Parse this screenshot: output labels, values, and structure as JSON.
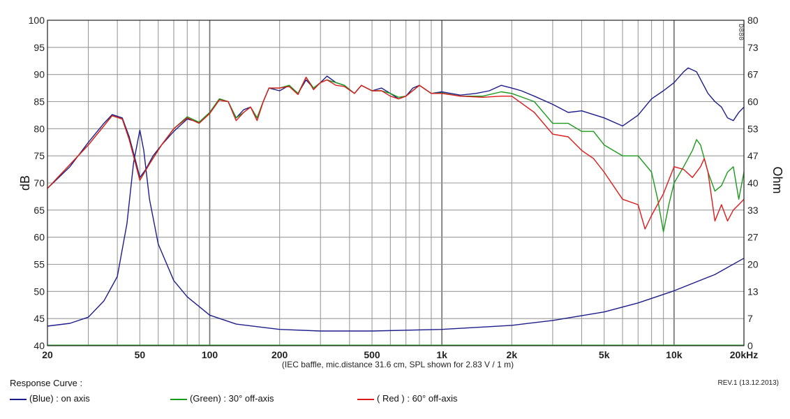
{
  "chart_data": {
    "type": "line",
    "xscale": "log",
    "xlim": [
      20,
      20000
    ],
    "ylim": [
      40,
      100
    ],
    "y2lim": [
      0,
      80
    ],
    "xticks": [
      {
        "v": 20,
        "label": "20"
      },
      {
        "v": 50,
        "label": "50"
      },
      {
        "v": 100,
        "label": "100"
      },
      {
        "v": 200,
        "label": "200"
      },
      {
        "v": 500,
        "label": "500"
      },
      {
        "v": 1000,
        "label": "1k"
      },
      {
        "v": 2000,
        "label": "2k"
      },
      {
        "v": 5000,
        "label": "5k"
      },
      {
        "v": 10000,
        "label": "10k"
      },
      {
        "v": 20000,
        "label": "20kHz"
      }
    ],
    "yticks": [
      "40",
      "45",
      "50",
      "55",
      "60",
      "65",
      "70",
      "75",
      "80",
      "85",
      "90",
      "95",
      "100"
    ],
    "y2ticks": [
      "0",
      "7",
      "13",
      "20",
      "27",
      "33",
      "40",
      "47",
      "53",
      "60",
      "67",
      "73",
      "80"
    ],
    "ylabel": "dB",
    "y2label": "Ohm",
    "note": "(IEC baffle, mic.distance 31.6 cm, SPL shown for 2.83 V / 1 m)",
    "corner_code": "D880",
    "series": [
      {
        "name": "(Blue)  : on axis",
        "color": "#1c1c8c",
        "axis": "left",
        "points": [
          [
            20,
            69
          ],
          [
            25,
            73
          ],
          [
            30,
            77.5
          ],
          [
            35,
            81
          ],
          [
            38,
            82.6
          ],
          [
            42,
            82
          ],
          [
            45,
            78.5
          ],
          [
            48,
            74
          ],
          [
            50,
            71
          ],
          [
            53,
            72.5
          ],
          [
            57,
            75
          ],
          [
            62,
            77
          ],
          [
            70,
            79.5
          ],
          [
            80,
            81.8
          ],
          [
            90,
            81.2
          ],
          [
            100,
            83
          ],
          [
            110,
            85.5
          ],
          [
            120,
            85
          ],
          [
            130,
            82
          ],
          [
            140,
            83.5
          ],
          [
            150,
            84
          ],
          [
            160,
            82
          ],
          [
            170,
            85
          ],
          [
            180,
            87.5
          ],
          [
            200,
            87
          ],
          [
            220,
            88
          ],
          [
            240,
            86.5
          ],
          [
            260,
            89
          ],
          [
            280,
            87.5
          ],
          [
            300,
            88.5
          ],
          [
            320,
            89.7
          ],
          [
            350,
            88.5
          ],
          [
            380,
            88
          ],
          [
            420,
            86.5
          ],
          [
            450,
            88
          ],
          [
            500,
            87
          ],
          [
            550,
            87.5
          ],
          [
            600,
            86.5
          ],
          [
            650,
            85.5
          ],
          [
            700,
            86
          ],
          [
            750,
            87.5
          ],
          [
            800,
            88
          ],
          [
            900,
            86.5
          ],
          [
            1000,
            86.8
          ],
          [
            1200,
            86.2
          ],
          [
            1400,
            86.5
          ],
          [
            1600,
            87
          ],
          [
            1800,
            88
          ],
          [
            2000,
            87.5
          ],
          [
            2200,
            87
          ],
          [
            2500,
            86
          ],
          [
            3000,
            84.5
          ],
          [
            3500,
            83
          ],
          [
            4000,
            83.3
          ],
          [
            5000,
            82
          ],
          [
            6000,
            80.5
          ],
          [
            7000,
            82.5
          ],
          [
            8000,
            85.5
          ],
          [
            9000,
            87
          ],
          [
            10000,
            88.5
          ],
          [
            11000,
            90.5
          ],
          [
            11500,
            91.2
          ],
          [
            12500,
            90.5
          ],
          [
            14000,
            86.5
          ],
          [
            15000,
            85
          ],
          [
            16000,
            84
          ],
          [
            17000,
            82
          ],
          [
            18000,
            81.5
          ],
          [
            19000,
            83
          ],
          [
            20000,
            84
          ]
        ]
      },
      {
        "name": "(Green) : 30° off-axis",
        "color": "#1a9a1a",
        "axis": "left",
        "points": [
          [
            20,
            69
          ],
          [
            30,
            77
          ],
          [
            38,
            82.4
          ],
          [
            42,
            81.8
          ],
          [
            45,
            78
          ],
          [
            50,
            70.5
          ],
          [
            55,
            73.5
          ],
          [
            62,
            77
          ],
          [
            70,
            80
          ],
          [
            80,
            82.2
          ],
          [
            90,
            81.2
          ],
          [
            100,
            83
          ],
          [
            110,
            85.5
          ],
          [
            120,
            85
          ],
          [
            130,
            82
          ],
          [
            140,
            83
          ],
          [
            150,
            84
          ],
          [
            160,
            82
          ],
          [
            170,
            85
          ],
          [
            180,
            87.5
          ],
          [
            200,
            87.5
          ],
          [
            220,
            88
          ],
          [
            240,
            86.5
          ],
          [
            260,
            89.5
          ],
          [
            280,
            87.5
          ],
          [
            300,
            88.5
          ],
          [
            320,
            89
          ],
          [
            350,
            88.5
          ],
          [
            380,
            88
          ],
          [
            420,
            86.5
          ],
          [
            450,
            88
          ],
          [
            500,
            87
          ],
          [
            550,
            87
          ],
          [
            600,
            86.5
          ],
          [
            650,
            85.8
          ],
          [
            700,
            86
          ],
          [
            800,
            88
          ],
          [
            900,
            86.5
          ],
          [
            1000,
            86.6
          ],
          [
            1200,
            86
          ],
          [
            1500,
            86
          ],
          [
            1800,
            86.8
          ],
          [
            2000,
            86.5
          ],
          [
            2500,
            85
          ],
          [
            3000,
            81
          ],
          [
            3500,
            81
          ],
          [
            4000,
            79.5
          ],
          [
            4500,
            79.5
          ],
          [
            5000,
            77
          ],
          [
            6000,
            75
          ],
          [
            7000,
            75
          ],
          [
            8000,
            72
          ],
          [
            8500,
            67
          ],
          [
            9000,
            61
          ],
          [
            9500,
            66
          ],
          [
            10000,
            70
          ],
          [
            11000,
            73
          ],
          [
            12000,
            76
          ],
          [
            12500,
            78
          ],
          [
            13000,
            77
          ],
          [
            14000,
            72
          ],
          [
            15000,
            68.5
          ],
          [
            16000,
            69.5
          ],
          [
            17000,
            72
          ],
          [
            18000,
            73
          ],
          [
            19000,
            67
          ],
          [
            20000,
            72
          ]
        ]
      },
      {
        "name": "( Red ) : 60° off-axis",
        "color": "#dd1a1a",
        "axis": "left",
        "points": [
          [
            20,
            69
          ],
          [
            30,
            77
          ],
          [
            38,
            82.4
          ],
          [
            42,
            81.8
          ],
          [
            45,
            78
          ],
          [
            50,
            70.5
          ],
          [
            55,
            73.5
          ],
          [
            62,
            77
          ],
          [
            70,
            80
          ],
          [
            80,
            82
          ],
          [
            90,
            81
          ],
          [
            100,
            82.8
          ],
          [
            110,
            85.3
          ],
          [
            120,
            85
          ],
          [
            130,
            81.5
          ],
          [
            140,
            83
          ],
          [
            150,
            84
          ],
          [
            160,
            81.5
          ],
          [
            170,
            85
          ],
          [
            180,
            87.5
          ],
          [
            200,
            87.5
          ],
          [
            220,
            87.8
          ],
          [
            240,
            86.3
          ],
          [
            260,
            89.5
          ],
          [
            280,
            87.2
          ],
          [
            300,
            88.5
          ],
          [
            320,
            89
          ],
          [
            350,
            88
          ],
          [
            380,
            87.8
          ],
          [
            420,
            86.5
          ],
          [
            450,
            88
          ],
          [
            500,
            87
          ],
          [
            550,
            87
          ],
          [
            600,
            86
          ],
          [
            650,
            85.5
          ],
          [
            700,
            86
          ],
          [
            800,
            88
          ],
          [
            900,
            86.5
          ],
          [
            1000,
            86.5
          ],
          [
            1200,
            86
          ],
          [
            1500,
            85.8
          ],
          [
            1800,
            86
          ],
          [
            2000,
            86
          ],
          [
            2500,
            83
          ],
          [
            3000,
            79
          ],
          [
            3500,
            78.5
          ],
          [
            4000,
            76
          ],
          [
            4500,
            74.5
          ],
          [
            5000,
            72
          ],
          [
            6000,
            67
          ],
          [
            7000,
            66
          ],
          [
            7500,
            61.5
          ],
          [
            8000,
            64
          ],
          [
            9000,
            68
          ],
          [
            10000,
            73
          ],
          [
            11000,
            72.5
          ],
          [
            12000,
            71
          ],
          [
            13000,
            73
          ],
          [
            13500,
            74.5
          ],
          [
            14000,
            72
          ],
          [
            15000,
            63
          ],
          [
            16000,
            66
          ],
          [
            17000,
            63
          ],
          [
            18000,
            65
          ],
          [
            19000,
            66
          ],
          [
            20000,
            67
          ]
        ]
      },
      {
        "name": "impedance",
        "color": "#1c1c8c",
        "axis": "right",
        "points": [
          [
            20,
            4.8
          ],
          [
            25,
            5.5
          ],
          [
            30,
            7
          ],
          [
            35,
            11
          ],
          [
            40,
            17
          ],
          [
            44,
            30
          ],
          [
            47,
            45
          ],
          [
            50,
            53
          ],
          [
            52,
            48
          ],
          [
            55,
            36
          ],
          [
            60,
            25
          ],
          [
            70,
            16
          ],
          [
            80,
            12
          ],
          [
            100,
            7.5
          ],
          [
            130,
            5.3
          ],
          [
            200,
            4
          ],
          [
            300,
            3.6
          ],
          [
            500,
            3.6
          ],
          [
            1000,
            4
          ],
          [
            2000,
            5
          ],
          [
            3000,
            6.2
          ],
          [
            5000,
            8.3
          ],
          [
            7000,
            10.5
          ],
          [
            10000,
            13.5
          ],
          [
            15000,
            17.5
          ],
          [
            20000,
            21.5
          ]
        ]
      }
    ]
  },
  "legend": {
    "title": "Response Curve :",
    "items": [
      "(Blue)  : on axis",
      "(Green) : 30° off-axis",
      "( Red ) : 60° off-axis"
    ]
  },
  "revision": "REV.1 (13.12.2013)"
}
